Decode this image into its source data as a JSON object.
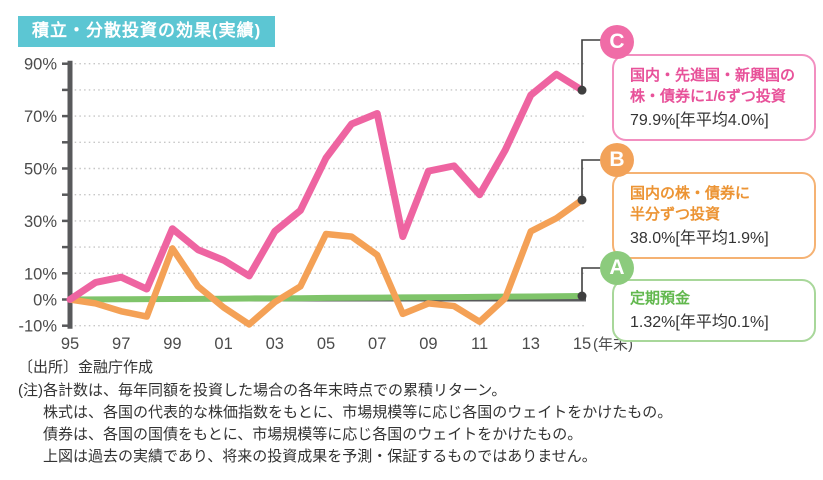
{
  "title": "積立・分散投資の効果(実績)",
  "legend": {
    "c": {
      "letter": "C",
      "line1": "国内・先進国・新興国の",
      "line2": "株・債券に1/6ずつ投資",
      "value": "79.9%[年平均4.0%]"
    },
    "b": {
      "letter": "B",
      "line1": "国内の株・債券に",
      "line2": "半分ずつ投資",
      "value": "38.0%[年平均1.9%]"
    },
    "a": {
      "letter": "A",
      "line1": "定期預金",
      "value": "1.32%[年平均0.1%]"
    }
  },
  "footer": {
    "source": "〔出所〕金融庁作成",
    "note_label": "(注)",
    "note_lines": [
      "各計数は、毎年同額を投資した場合の各年末時点での累積リターン。",
      "株式は、各国の代表的な株価指数をもとに、市場規模等に応じ各国のウェイトをかけたもの。",
      "債券は、各国の国債をもとに、市場規模等に応じ各国のウェイトをかけたもの。",
      "上図は過去の実績であり、将来の投資成果を予測・保証するものではありません。"
    ]
  },
  "colors": {
    "title_bg": "#5cc6d3",
    "pink": "#ee64a1",
    "orange": "#f4a156",
    "green": "#7fc46a",
    "axis": "#58595b",
    "grid": "#c6c6c6",
    "tick_label": "#4b4b4b",
    "connector": "#3f3f3f"
  },
  "chart_data": {
    "type": "line",
    "title": "積立・分散投資の効果(実績)",
    "x_years": [
      1995,
      1996,
      1997,
      1998,
      1999,
      2000,
      2001,
      2002,
      2003,
      2004,
      2005,
      2006,
      2007,
      2008,
      2009,
      2010,
      2011,
      2012,
      2013,
      2014,
      2015
    ],
    "x_tick_labels": [
      "95",
      "97",
      "99",
      "01",
      "03",
      "05",
      "07",
      "09",
      "11",
      "13",
      "15"
    ],
    "x_axis_note": "(年末)",
    "y_unit": "%",
    "ylim": [
      -10,
      90
    ],
    "y_gridlines_every": 10,
    "y_ticks_labeled": [
      90,
      70,
      50,
      30,
      10,
      0,
      -10
    ],
    "legend_position": "right",
    "grid": "dotted-horizontal",
    "series": [
      {
        "key": "A",
        "name": "定期預金",
        "color": "#7fc46a",
        "final_value": 1.32,
        "annual_average": "0.1%",
        "values": [
          0,
          0.05,
          0.1,
          0.15,
          0.2,
          0.25,
          0.3,
          0.4,
          0.45,
          0.5,
          0.6,
          0.65,
          0.7,
          0.8,
          0.85,
          0.9,
          1.0,
          1.1,
          1.15,
          1.25,
          1.32
        ]
      },
      {
        "key": "B",
        "name": "国内の株・債券に半分ずつ投資",
        "color": "#f4a156",
        "final_value": 38.0,
        "annual_average": "1.9%",
        "values": [
          0,
          -1.5,
          -4.5,
          -6.5,
          19.5,
          5,
          -3,
          -9.5,
          -1,
          5,
          25,
          24,
          17,
          -5.5,
          -1.5,
          -2.5,
          -8.5,
          0.5,
          26,
          31,
          38
        ]
      },
      {
        "key": "C",
        "name": "国内・先進国・新興国の株・債券に1/6ずつ投資",
        "color": "#ee64a1",
        "final_value": 79.9,
        "annual_average": "4.0%",
        "values": [
          0,
          6.5,
          8.5,
          4,
          27,
          19,
          15,
          9,
          26,
          34,
          54,
          67,
          71,
          24,
          49,
          51,
          40,
          57,
          78,
          86,
          79.9
        ]
      }
    ]
  }
}
